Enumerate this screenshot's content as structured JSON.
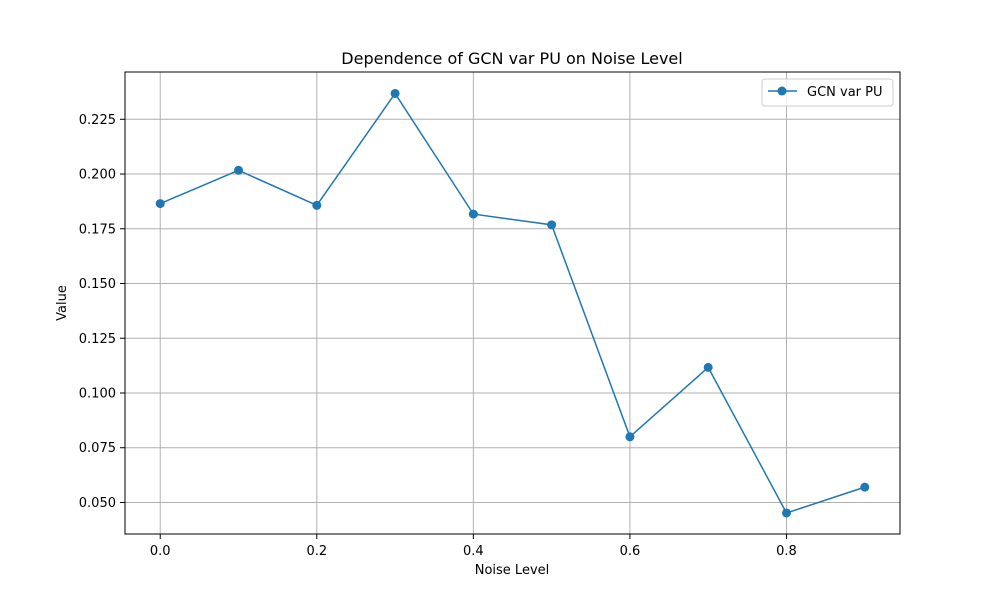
{
  "chart_data": {
    "type": "line",
    "title": "Dependence of GCN var PU on Noise Level",
    "xlabel": "Noise Level",
    "ylabel": "Value",
    "x": [
      0.0,
      0.1,
      0.2,
      0.3,
      0.4,
      0.5,
      0.6,
      0.7,
      0.8,
      0.9
    ],
    "series": [
      {
        "name": "GCN var PU",
        "color": "#1f77b4",
        "marker": "circle",
        "values": [
          0.1865,
          0.2017,
          0.1857,
          0.2368,
          0.1817,
          0.1768,
          0.08,
          0.1117,
          0.0452,
          0.057
        ]
      }
    ],
    "xlim": [
      -0.045,
      0.945
    ],
    "ylim": [
      0.0356,
      0.2466
    ],
    "xticks": [
      0.0,
      0.2,
      0.4,
      0.6,
      0.8
    ],
    "xtick_labels": [
      "0.0",
      "0.2",
      "0.4",
      "0.6",
      "0.8"
    ],
    "yticks": [
      0.05,
      0.075,
      0.1,
      0.125,
      0.15,
      0.175,
      0.2,
      0.225
    ],
    "ytick_labels": [
      "0.050",
      "0.075",
      "0.100",
      "0.125",
      "0.150",
      "0.175",
      "0.200",
      "0.225"
    ],
    "grid": true,
    "legend_position": "top-right"
  }
}
